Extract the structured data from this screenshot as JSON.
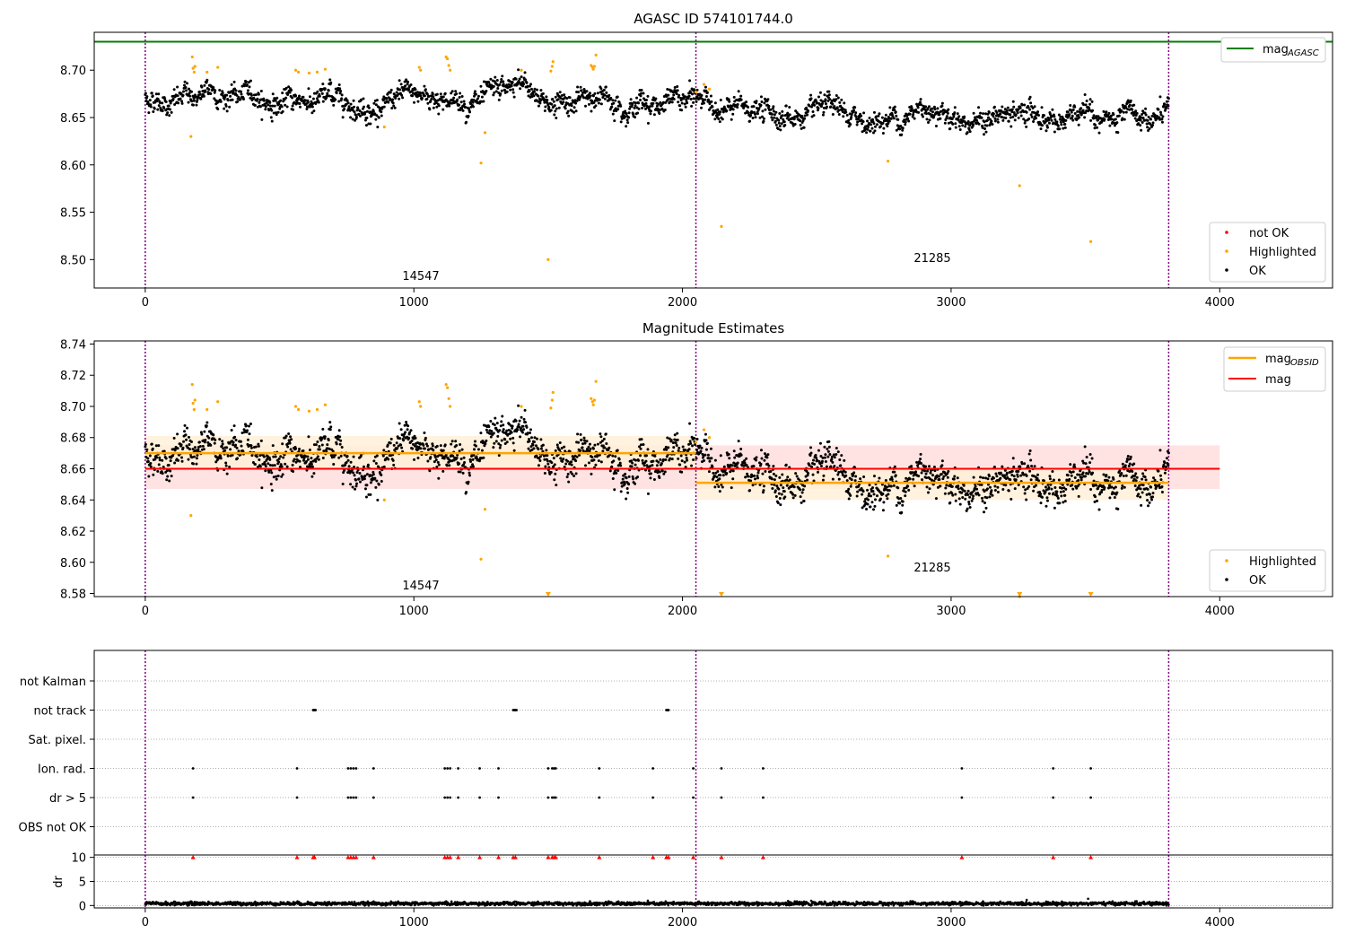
{
  "chart_data": [
    {
      "type": "scatter",
      "title": "AGASC ID 574101744.0",
      "xlim": [
        -190,
        4420
      ],
      "ylim": [
        8.47,
        8.74
      ],
      "xticks": [
        0,
        1000,
        2000,
        3000,
        4000
      ],
      "yticks": [
        8.5,
        8.55,
        8.6,
        8.65,
        8.7
      ],
      "ytick_labels": [
        "8.50",
        "8.55",
        "8.60",
        "8.65",
        "8.70"
      ],
      "grid": false,
      "obsid_boundaries": [
        0,
        2050,
        3810
      ],
      "obsid_labels": [
        {
          "text": "14547",
          "x": 1020,
          "y": 8.478
        },
        {
          "text": "21285",
          "x": 3025,
          "y": 8.5
        }
      ],
      "mag_agasc": 8.73,
      "trend": {
        "start": 0,
        "end": 3810,
        "anchors": [
          [
            0,
            8.67
          ],
          [
            300,
            8.674
          ],
          [
            500,
            8.666
          ],
          [
            700,
            8.672
          ],
          [
            900,
            8.664
          ],
          [
            1000,
            8.67
          ],
          [
            1100,
            8.672
          ],
          [
            1300,
            8.664
          ],
          [
            1400,
            8.678
          ],
          [
            1500,
            8.668
          ],
          [
            1650,
            8.668
          ],
          [
            1800,
            8.673
          ],
          [
            2000,
            8.665
          ],
          [
            2050,
            8.668
          ],
          [
            2200,
            8.658
          ],
          [
            2400,
            8.652
          ],
          [
            2650,
            8.642
          ],
          [
            2800,
            8.65
          ],
          [
            2950,
            8.665
          ],
          [
            3100,
            8.648
          ],
          [
            3400,
            8.65
          ],
          [
            3600,
            8.644
          ],
          [
            3700,
            8.636
          ],
          [
            3810,
            8.652
          ]
        ],
        "noise": 0.009,
        "point_count": 2300
      },
      "highlighted_points": [
        [
          170,
          8.63
        ],
        [
          175,
          8.714
        ],
        [
          178,
          8.702
        ],
        [
          182,
          8.698
        ],
        [
          185,
          8.704
        ],
        [
          230,
          8.698
        ],
        [
          270,
          8.703
        ],
        [
          560,
          8.7
        ],
        [
          570,
          8.698
        ],
        [
          610,
          8.697
        ],
        [
          640,
          8.698
        ],
        [
          670,
          8.701
        ],
        [
          890,
          8.64
        ],
        [
          1020,
          8.703
        ],
        [
          1025,
          8.7
        ],
        [
          1120,
          8.714
        ],
        [
          1125,
          8.712
        ],
        [
          1130,
          8.705
        ],
        [
          1135,
          8.7
        ],
        [
          1250,
          8.602
        ],
        [
          1265,
          8.634
        ],
        [
          1400,
          8.7
        ],
        [
          1500,
          8.5
        ],
        [
          1510,
          8.699
        ],
        [
          1515,
          8.704
        ],
        [
          1518,
          8.709
        ],
        [
          1660,
          8.705
        ],
        [
          1665,
          8.703
        ],
        [
          1668,
          8.701
        ],
        [
          1672,
          8.704
        ],
        [
          1678,
          8.716
        ],
        [
          2050,
          8.677
        ],
        [
          2080,
          8.685
        ],
        [
          2100,
          8.68
        ],
        [
          2145,
          8.535
        ],
        [
          2765,
          8.604
        ],
        [
          3255,
          8.578
        ],
        [
          3520,
          8.519
        ]
      ],
      "legend_upper": [
        {
          "label": "mag",
          "sub": "AGASC",
          "color": "#008000"
        }
      ],
      "legend_lower": [
        {
          "label": "not OK",
          "color": "#ff0000"
        },
        {
          "label": "Highlighted",
          "color": "#ffa500"
        },
        {
          "label": "OK",
          "color": "#000000"
        }
      ],
      "legend_position": "upper-right, lower-right",
      "colors": {
        "ok": "#000000",
        "highlighted": "#ffa500",
        "not_ok": "#ff0000",
        "mag_agasc": "#008000",
        "boundary": "#800080"
      }
    },
    {
      "type": "scatter",
      "title": "Magnitude Estimates",
      "xlim": [
        -190,
        4420
      ],
      "ylim": [
        8.578,
        8.742
      ],
      "xticks": [
        0,
        1000,
        2000,
        3000,
        4000
      ],
      "yticks": [
        8.58,
        8.6,
        8.62,
        8.64,
        8.66,
        8.68,
        8.7,
        8.72,
        8.74
      ],
      "ytick_labels": [
        "8.58",
        "8.60",
        "8.62",
        "8.64",
        "8.66",
        "8.68",
        "8.70",
        "8.72",
        "8.74"
      ],
      "grid": false,
      "obsid_boundaries": [
        0,
        2050,
        3810
      ],
      "obsid_labels": [
        {
          "text": "14547",
          "x": 1020,
          "y": 8.584
        },
        {
          "text": "21285",
          "x": 3025,
          "y": 8.597
        }
      ],
      "mag": {
        "value": 8.66,
        "band": [
          8.647,
          8.675
        ],
        "x_range": [
          0,
          4000
        ]
      },
      "mag_obsid": [
        {
          "x_range": [
            0,
            2050
          ],
          "value": 8.67,
          "band": [
            8.66,
            8.681
          ]
        },
        {
          "x_range": [
            2050,
            3810
          ],
          "value": 8.651,
          "band": [
            8.64,
            8.661
          ]
        }
      ],
      "trend": "same as panel 1",
      "highlighted_points": "same as panel 1",
      "off_scale_markers": [
        1500,
        2145,
        3255,
        3520
      ],
      "legend_upper": [
        {
          "label": "mag",
          "sub": "OBSID",
          "color": "#ffa500"
        },
        {
          "label": "mag",
          "sub": "",
          "color": "#ff0000"
        }
      ],
      "legend_lower": [
        {
          "label": "Highlighted",
          "color": "#ffa500"
        },
        {
          "label": "OK",
          "color": "#000000"
        }
      ],
      "legend_position": "upper-right, lower-right",
      "colors": {
        "mag": "#ff0000",
        "mag_band": "#ffe0e0",
        "mag_obsid": "#ffa500",
        "mag_obsid_band": "#fff0d8"
      }
    },
    {
      "type": "scatter",
      "title": "",
      "xlim": [
        -190,
        4420
      ],
      "categories": [
        "not Kalman",
        "not track",
        "Sat. pixel.",
        "Ion. rad.",
        "dr > 5",
        "OBS not OK"
      ],
      "flag_points": {
        "not Kalman": [],
        "not track": [
          625,
          628,
          631,
          634,
          1370,
          1374,
          1378,
          1382,
          1940,
          1944,
          1948
        ],
        "Sat. pixel.": [],
        "Ion. rad.": [
          178,
          565,
          755,
          765,
          775,
          785,
          850,
          1115,
          1125,
          1135,
          1165,
          1245,
          1315,
          1500,
          1515,
          1522,
          1528,
          1690,
          1890,
          2040,
          2145,
          2300,
          3040,
          3380,
          3520
        ],
        "dr > 5": [
          178,
          565,
          755,
          765,
          775,
          785,
          850,
          1115,
          1125,
          1135,
          1165,
          1245,
          1315,
          1500,
          1515,
          1522,
          1528,
          1690,
          1890,
          2040,
          2145,
          2300,
          3040,
          3380,
          3520
        ],
        "OBS not OK": []
      },
      "dr_panel": {
        "ylabel": "dr",
        "ylim": [
          -0.5,
          10.5
        ],
        "yticks": [
          0,
          5,
          10
        ],
        "ytick_labels": [
          "0",
          "5",
          "10"
        ],
        "clipped_at": 10,
        "clipped_points": [
          178,
          565,
          625,
          630,
          755,
          765,
          775,
          785,
          850,
          1115,
          1125,
          1135,
          1165,
          1245,
          1315,
          1370,
          1378,
          1500,
          1515,
          1522,
          1528,
          1690,
          1890,
          1940,
          1948,
          2040,
          2145,
          2300,
          3040,
          3380,
          3520
        ],
        "typical_dr": 0.4,
        "outliers": [
          [
            3510,
            1.4
          ]
        ]
      },
      "obsid_boundaries": [
        0,
        2050,
        3810
      ],
      "colors": {
        "flag": "#000000",
        "clipped": "#ff0000",
        "grid": "#b0b0b0"
      }
    }
  ],
  "axis": {
    "xtick_labels": [
      "0",
      "1000",
      "2000",
      "3000",
      "4000"
    ]
  }
}
